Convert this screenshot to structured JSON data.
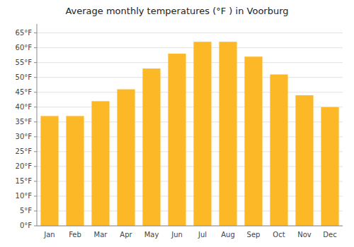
{
  "chart_data": {
    "type": "bar",
    "title": "Average monthly temperatures (°F ) in Voorburg",
    "categories": [
      "Jan",
      "Feb",
      "Mar",
      "Apr",
      "May",
      "Jun",
      "Jul",
      "Aug",
      "Sep",
      "Oct",
      "Nov",
      "Dec"
    ],
    "values": [
      37,
      37,
      42,
      46,
      53,
      58,
      62,
      62,
      57,
      51,
      44,
      40
    ],
    "color": "#FDB827",
    "ylim": [
      0,
      68
    ],
    "yticks": [
      {
        "value": 0,
        "label": "0°F"
      },
      {
        "value": 5,
        "label": "5°F"
      },
      {
        "value": 10,
        "label": "10°F"
      },
      {
        "value": 15,
        "label": "15°F"
      },
      {
        "value": 20,
        "label": "20°F"
      },
      {
        "value": 25,
        "label": "25°F"
      },
      {
        "value": 30,
        "label": "30°F"
      },
      {
        "value": 35,
        "label": "35°F"
      },
      {
        "value": 40,
        "label": "40°F"
      },
      {
        "value": 45,
        "label": "45°F"
      },
      {
        "value": 50,
        "label": "50°F"
      },
      {
        "value": 55,
        "label": "55°F"
      },
      {
        "value": 60,
        "label": "60°F"
      },
      {
        "value": 65,
        "label": "65°F"
      }
    ],
    "grid": true
  }
}
